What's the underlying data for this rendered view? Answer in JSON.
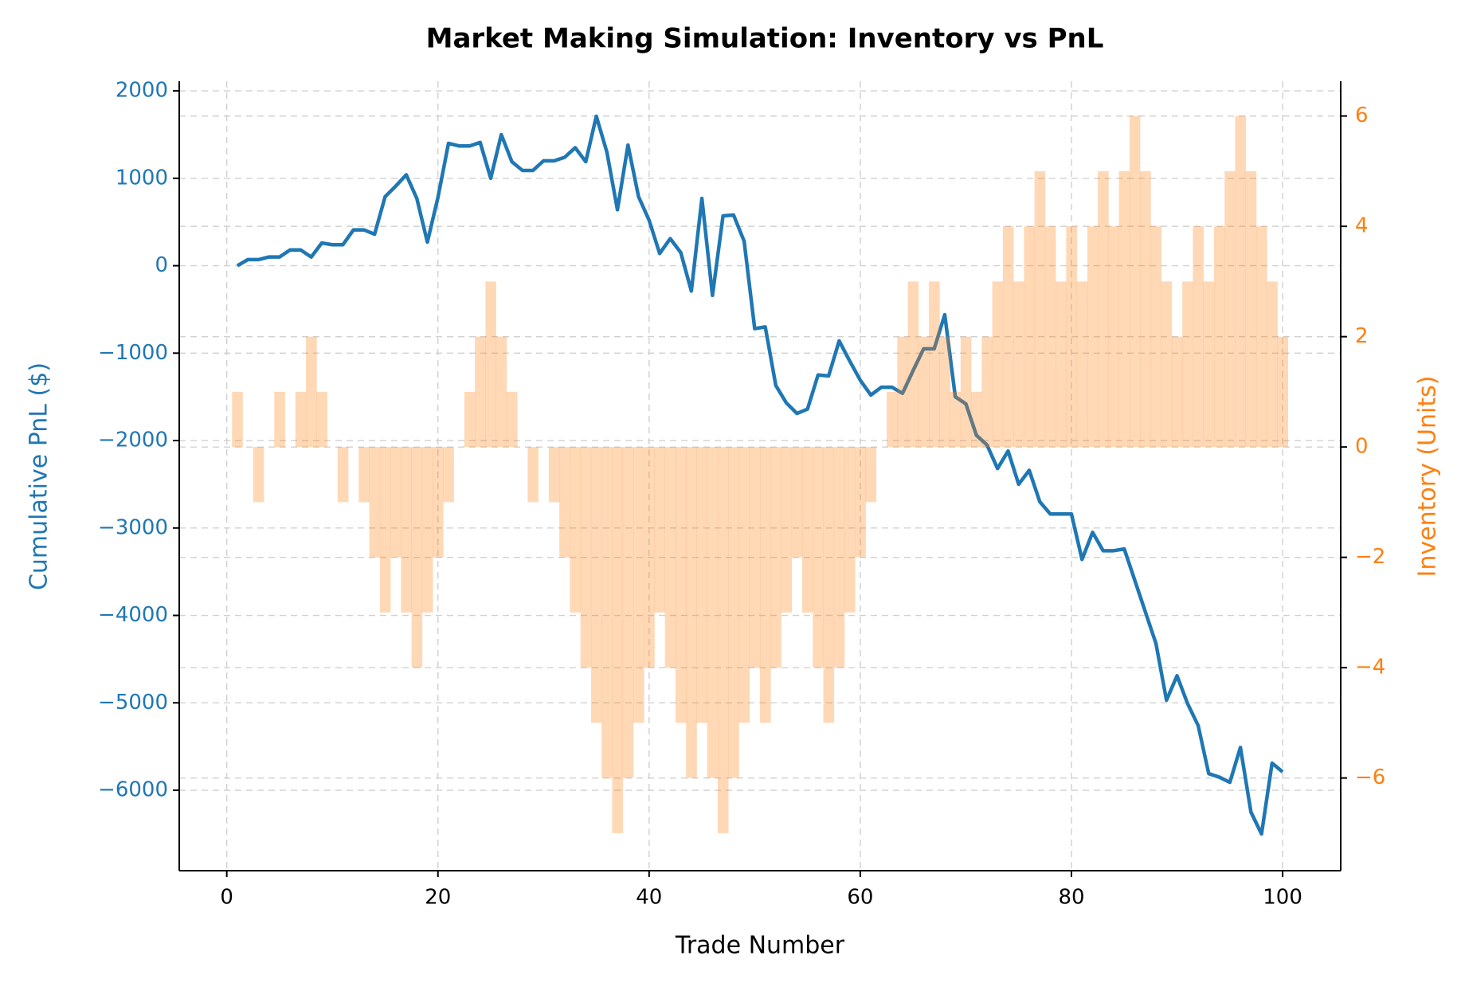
{
  "chart_data": {
    "type": "line",
    "title": "Market Making Simulation: Inventory vs PnL",
    "xlabel": "Trade Number",
    "ylabel": "Cumulative PnL ($)",
    "y2label": "Inventory (Units)",
    "x": [
      1,
      2,
      3,
      4,
      5,
      6,
      7,
      8,
      9,
      10,
      11,
      12,
      13,
      14,
      15,
      16,
      17,
      18,
      19,
      20,
      21,
      22,
      23,
      24,
      25,
      26,
      27,
      28,
      29,
      30,
      31,
      32,
      33,
      34,
      35,
      36,
      37,
      38,
      39,
      40,
      41,
      42,
      43,
      44,
      45,
      46,
      47,
      48,
      49,
      50,
      51,
      52,
      53,
      54,
      55,
      56,
      57,
      58,
      59,
      60,
      61,
      62,
      63,
      64,
      65,
      66,
      67,
      68,
      69,
      70,
      71,
      72,
      73,
      74,
      75,
      76,
      77,
      78,
      79,
      80,
      81,
      82,
      83,
      84,
      85,
      86,
      87,
      88,
      89,
      90,
      91,
      92,
      93,
      94,
      95,
      96,
      97,
      98,
      99,
      100
    ],
    "series": [
      {
        "type": "line",
        "color": "#1f77b4",
        "values": [
          0,
          70,
          70,
          100,
          100,
          180,
          180,
          100,
          260,
          240,
          240,
          410,
          410,
          360,
          790,
          910,
          1040,
          770,
          270,
          780,
          1400,
          1370,
          1370,
          1410,
          1000,
          1500,
          1190,
          1090,
          1090,
          1200,
          1200,
          1240,
          1350,
          1190,
          1710,
          1300,
          640,
          1380,
          790,
          520,
          140,
          310,
          150,
          -290,
          770,
          -340,
          570,
          580,
          280,
          -720,
          -700,
          -1370,
          -1570,
          -1690,
          -1640,
          -1250,
          -1260,
          -860,
          -1090,
          -1310,
          -1480,
          -1390,
          -1390,
          -1460,
          -1200,
          -950,
          -950,
          -560,
          -1500,
          -1580,
          -1940,
          -2050,
          -2320,
          -2120,
          -2500,
          -2340,
          -2700,
          -2840,
          -2840,
          -2840,
          -3360,
          -3050,
          -3260,
          -3260,
          -3240,
          -3600,
          -3960,
          -4320,
          -4970,
          -4690,
          -5010,
          -5260,
          -5810,
          -5850,
          -5910,
          -5510,
          -6250,
          -6500,
          -5690,
          -5790
        ]
      },
      {
        "type": "bar",
        "axis": "y2",
        "color": "#ff7f0e",
        "values": [
          1,
          0,
          -1,
          0,
          1,
          0,
          1,
          2,
          1,
          0,
          -1,
          0,
          -1,
          -2,
          -3,
          -2,
          -3,
          -4,
          -3,
          -2,
          -1,
          0,
          1,
          2,
          3,
          2,
          1,
          0,
          -1,
          0,
          -1,
          -2,
          -3,
          -4,
          -5,
          -6,
          -7,
          -6,
          -5,
          -4,
          -3,
          -4,
          -5,
          -6,
          -5,
          -6,
          -7,
          -6,
          -5,
          -4,
          -5,
          -4,
          -3,
          -2,
          -3,
          -4,
          -5,
          -4,
          -3,
          -2,
          -1,
          0,
          1,
          2,
          3,
          2,
          3,
          2,
          1,
          2,
          1,
          2,
          3,
          4,
          3,
          4,
          5,
          4,
          3,
          4,
          3,
          4,
          5,
          4,
          5,
          6,
          5,
          4,
          3,
          2,
          3,
          4,
          3,
          4,
          5,
          6,
          5,
          4,
          3,
          2
        ]
      }
    ],
    "xlim": [
      -4.5,
      105.5
    ],
    "xticks": [
      0,
      20,
      40,
      60,
      80,
      100
    ],
    "ylim": [
      -6920,
      2110
    ],
    "yticks": [
      {
        "value": -6000,
        "label": "−6000"
      },
      {
        "value": -5000,
        "label": "−5000"
      },
      {
        "value": -4000,
        "label": "−4000"
      },
      {
        "value": -3000,
        "label": "−3000"
      },
      {
        "value": -2000,
        "label": "−2000"
      },
      {
        "value": -1000,
        "label": "−1000"
      },
      0,
      1000,
      2000
    ],
    "y2lim": [
      -7.68,
      6.63
    ],
    "y2ticks": [
      {
        "value": -6,
        "label": "−6"
      },
      {
        "value": -4,
        "label": "−4"
      },
      {
        "value": -2,
        "label": "−2"
      },
      0,
      2,
      4,
      6
    ],
    "grid": true,
    "ylabel_color": "#1f77b4",
    "y2label_color": "#ff7f0e",
    "bar_alpha": 0.3
  }
}
